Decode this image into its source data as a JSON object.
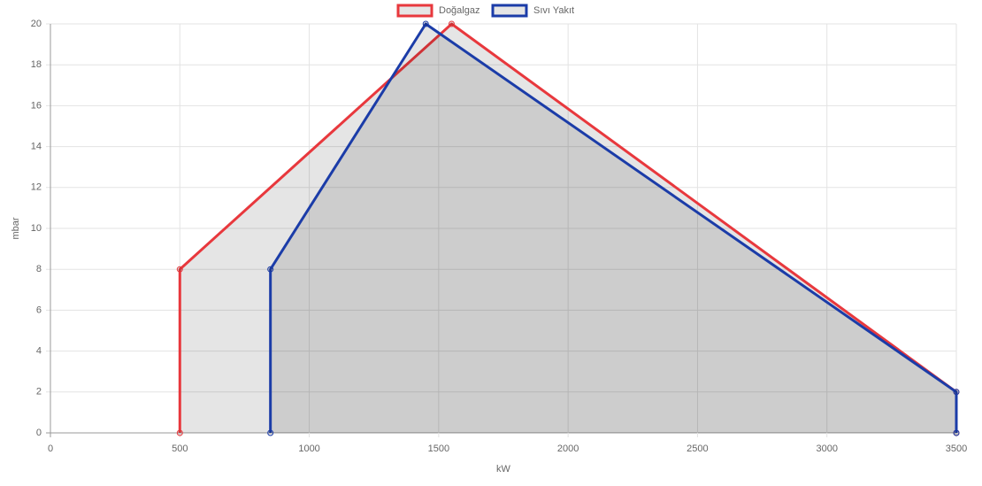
{
  "chart_data": {
    "type": "line",
    "x_label": "kW",
    "y_label": "mbar",
    "series": [
      {
        "name": "Doğalgaz",
        "color": "#e8383d",
        "x": [
          500,
          500,
          1550,
          3500,
          3500
        ],
        "values": [
          0,
          8,
          20,
          2,
          0
        ]
      },
      {
        "name": "Sıvı Yakıt",
        "color": "#1b3ca8",
        "x": [
          850,
          850,
          1450,
          3500,
          3500
        ],
        "values": [
          0,
          8,
          20,
          2,
          0
        ]
      }
    ],
    "xlim": [
      0,
      3500
    ],
    "xticks": [
      0,
      500,
      1000,
      1500,
      2000,
      2500,
      3000,
      3500
    ],
    "ylim": [
      0,
      20
    ],
    "yticks": [
      0,
      2,
      4,
      6,
      8,
      10,
      12,
      14,
      16,
      18,
      20
    ],
    "grid": true,
    "fill": true,
    "legend": "top"
  }
}
